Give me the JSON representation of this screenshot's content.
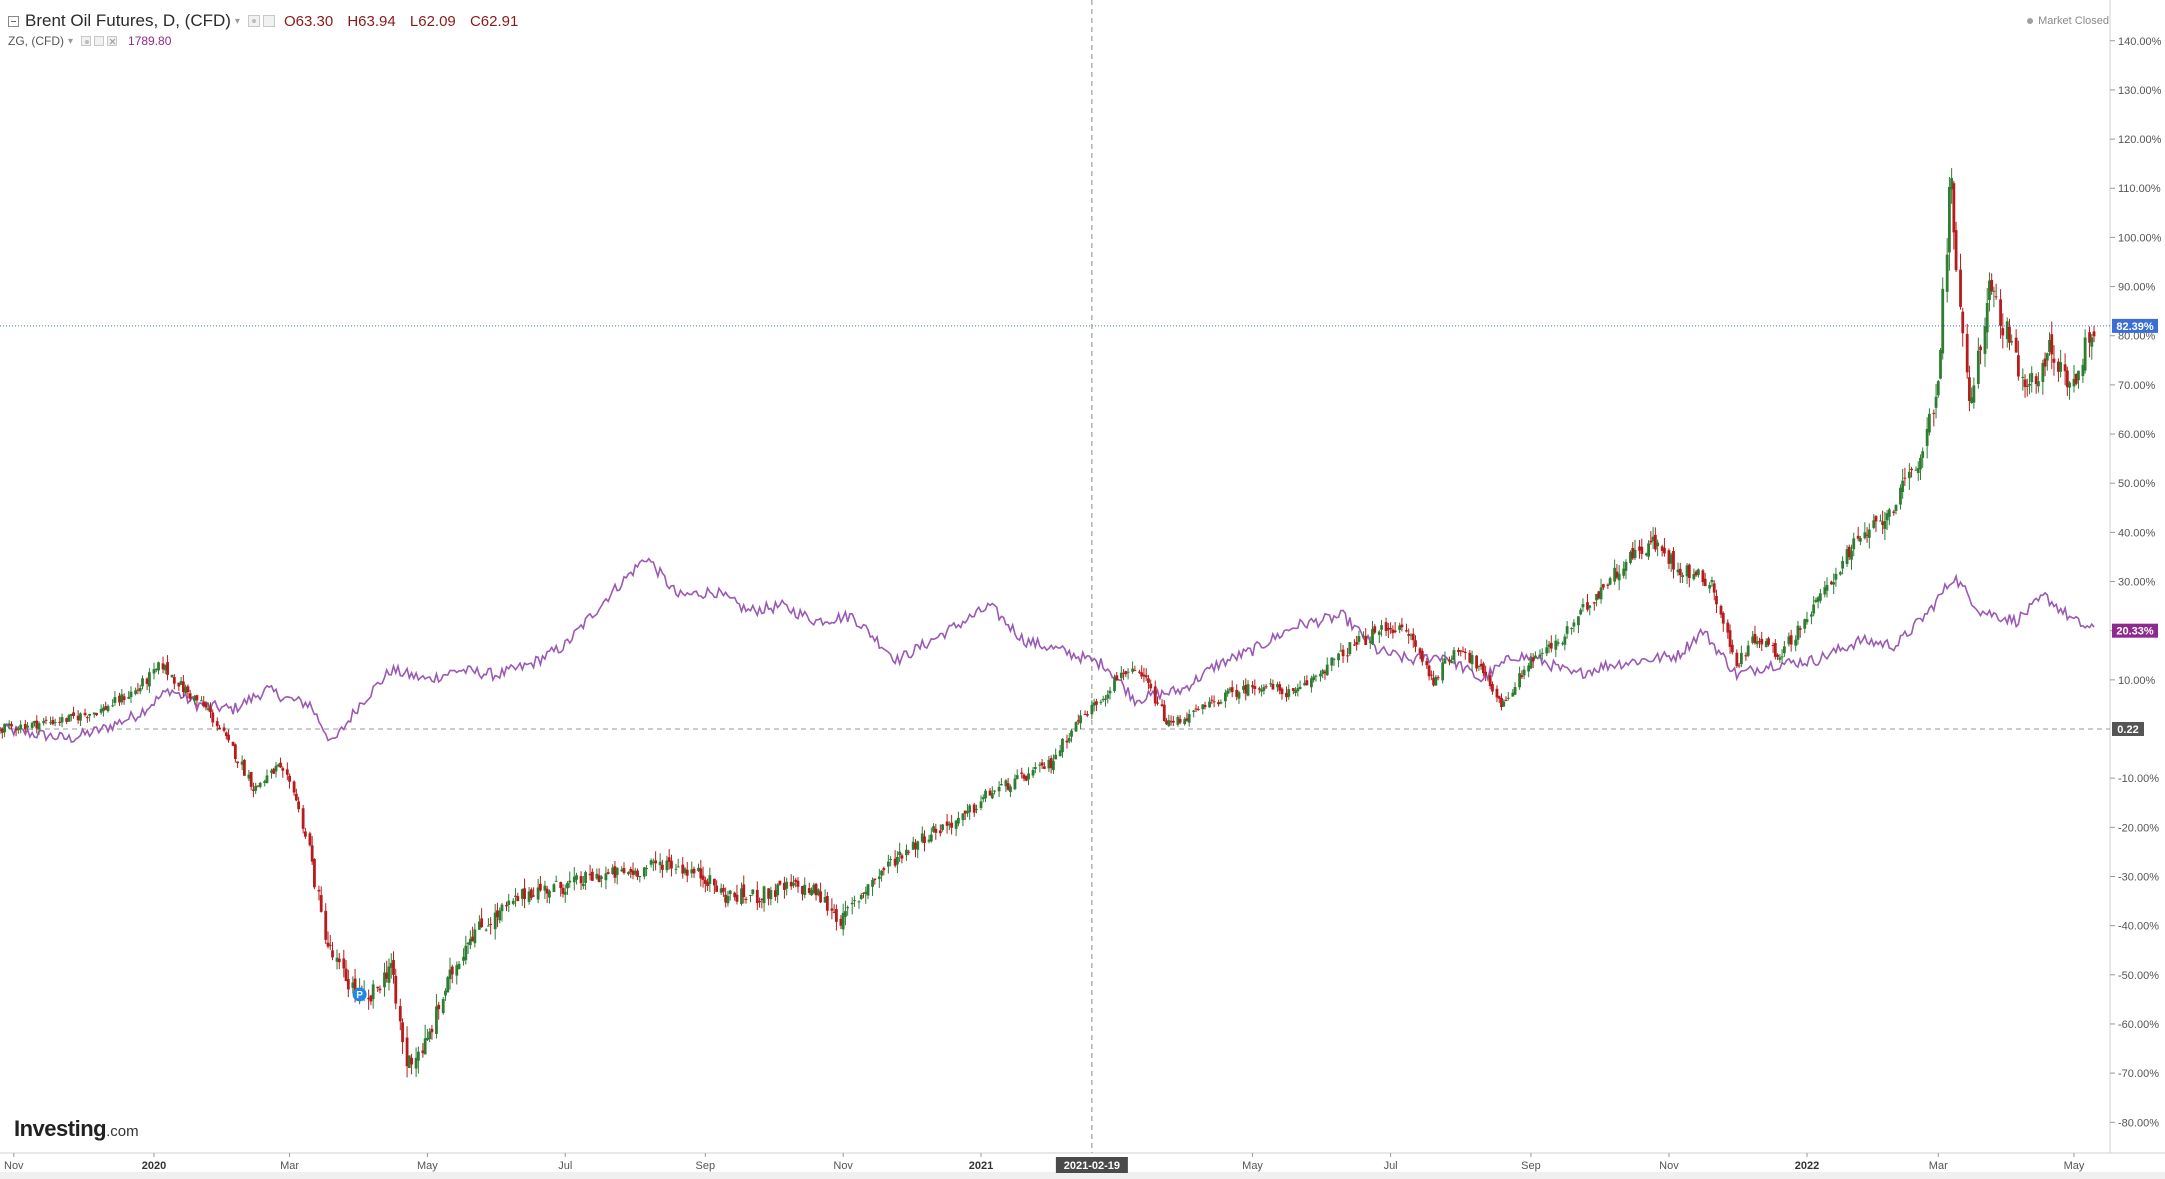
{
  "legend": {
    "main_symbol": "Brent Oil Futures, D, (CFD)",
    "open": "O63.30",
    "high": "H63.94",
    "low": "L62.09",
    "close": "C62.91",
    "compare_symbol": "ZG, (CFD)",
    "compare_value": "1789.80"
  },
  "status": {
    "market": "Market Closed"
  },
  "watermark": {
    "brand": "Investing",
    "suffix": ".com"
  },
  "colors": {
    "up_candle": "#2e7d32",
    "down_candle": "#b71c1c",
    "compare_line": "#9b59b6",
    "last_price_badge": "#3b6fd6",
    "compare_badge": "#8e2a8e",
    "zero_badge": "#555555"
  },
  "markers": {
    "event_label": "P"
  },
  "chart_data": {
    "type": "line",
    "title": "",
    "scale": "percent",
    "ylim": [
      -85,
      143
    ],
    "x_ticks": [
      {
        "label": "Nov",
        "date": "2019-11-01",
        "bold": false
      },
      {
        "label": "2020",
        "date": "2020-01-01",
        "bold": true
      },
      {
        "label": "Mar",
        "date": "2020-03-01",
        "bold": false
      },
      {
        "label": "May",
        "date": "2020-05-01",
        "bold": false
      },
      {
        "label": "Jul",
        "date": "2020-07-01",
        "bold": false
      },
      {
        "label": "Sep",
        "date": "2020-09-01",
        "bold": false
      },
      {
        "label": "Nov",
        "date": "2020-11-01",
        "bold": false
      },
      {
        "label": "2021",
        "date": "2021-01-01",
        "bold": true
      },
      {
        "label": "May",
        "date": "2021-05-01",
        "bold": false
      },
      {
        "label": "Jul",
        "date": "2021-07-01",
        "bold": false
      },
      {
        "label": "Sep",
        "date": "2021-09-01",
        "bold": false
      },
      {
        "label": "Nov",
        "date": "2021-11-01",
        "bold": false
      },
      {
        "label": "2022",
        "date": "2022-01-01",
        "bold": true
      },
      {
        "label": "Mar",
        "date": "2022-03-01",
        "bold": false
      },
      {
        "label": "May",
        "date": "2022-05-01",
        "bold": false
      }
    ],
    "y_ticks": [
      140,
      130,
      120,
      110,
      100,
      90,
      80,
      70,
      60,
      50,
      40,
      30,
      20,
      10,
      -10,
      -20,
      -30,
      -40,
      -50,
      -60,
      -70,
      -80
    ],
    "y_tick_suffix": ".00%",
    "crosshair": {
      "date_label": "2021-02-19"
    },
    "last_values": {
      "main": "82.39%",
      "compare": "20.33%",
      "zero": "0.22"
    },
    "event_marker_date": "2020-04-01",
    "series": [
      {
        "name": "Brent Oil Futures, D, (CFD)",
        "kind": "candlestick",
        "points": [
          [
            "2019-10-26",
            0
          ],
          [
            "2019-11-10",
            1
          ],
          [
            "2019-11-25",
            2
          ],
          [
            "2019-12-10",
            4
          ],
          [
            "2019-12-25",
            8
          ],
          [
            "2020-01-05",
            13
          ],
          [
            "2020-01-15",
            8
          ],
          [
            "2020-01-25",
            4
          ],
          [
            "2020-02-05",
            -4
          ],
          [
            "2020-02-15",
            -12
          ],
          [
            "2020-02-25",
            -8
          ],
          [
            "2020-03-03",
            -12
          ],
          [
            "2020-03-10",
            -24
          ],
          [
            "2020-03-18",
            -44
          ],
          [
            "2020-03-25",
            -50
          ],
          [
            "2020-04-05",
            -56
          ],
          [
            "2020-04-15",
            -48
          ],
          [
            "2020-04-22",
            -68
          ],
          [
            "2020-05-01",
            -64
          ],
          [
            "2020-05-10",
            -52
          ],
          [
            "2020-05-20",
            -42
          ],
          [
            "2020-06-01",
            -38
          ],
          [
            "2020-06-15",
            -33
          ],
          [
            "2020-07-01",
            -32
          ],
          [
            "2020-07-15",
            -30
          ],
          [
            "2020-08-01",
            -29
          ],
          [
            "2020-08-15",
            -27
          ],
          [
            "2020-09-01",
            -30
          ],
          [
            "2020-09-10",
            -34
          ],
          [
            "2020-09-25",
            -34
          ],
          [
            "2020-10-10",
            -32
          ],
          [
            "2020-10-20",
            -33
          ],
          [
            "2020-11-01",
            -39
          ],
          [
            "2020-11-10",
            -33
          ],
          [
            "2020-11-25",
            -26
          ],
          [
            "2020-12-10",
            -21
          ],
          [
            "2020-12-25",
            -18
          ],
          [
            "2021-01-05",
            -13
          ],
          [
            "2021-01-20",
            -10
          ],
          [
            "2021-02-01",
            -7
          ],
          [
            "2021-02-12",
            1
          ],
          [
            "2021-02-25",
            7
          ],
          [
            "2021-03-05",
            12
          ],
          [
            "2021-03-15",
            10
          ],
          [
            "2021-03-25",
            1
          ],
          [
            "2021-04-05",
            3
          ],
          [
            "2021-04-20",
            7
          ],
          [
            "2021-05-05",
            9
          ],
          [
            "2021-05-20",
            7
          ],
          [
            "2021-06-01",
            12
          ],
          [
            "2021-06-15",
            17
          ],
          [
            "2021-07-01",
            21
          ],
          [
            "2021-07-10",
            19
          ],
          [
            "2021-07-20",
            10
          ],
          [
            "2021-08-01",
            17
          ],
          [
            "2021-08-10",
            12
          ],
          [
            "2021-08-20",
            5
          ],
          [
            "2021-09-01",
            14
          ],
          [
            "2021-09-15",
            18
          ],
          [
            "2021-10-01",
            28
          ],
          [
            "2021-10-15",
            35
          ],
          [
            "2021-10-25",
            38
          ],
          [
            "2021-11-05",
            33
          ],
          [
            "2021-11-20",
            30
          ],
          [
            "2021-12-01",
            13
          ],
          [
            "2021-12-10",
            19
          ],
          [
            "2021-12-20",
            15
          ],
          [
            "2022-01-05",
            25
          ],
          [
            "2022-01-20",
            36
          ],
          [
            "2022-02-05",
            43
          ],
          [
            "2022-02-20",
            53
          ],
          [
            "2022-03-01",
            70
          ],
          [
            "2022-03-07",
            110
          ],
          [
            "2022-03-15",
            65
          ],
          [
            "2022-03-25",
            90
          ],
          [
            "2022-04-10",
            68
          ],
          [
            "2022-04-20",
            77
          ],
          [
            "2022-05-01",
            70
          ],
          [
            "2022-05-10",
            82
          ]
        ]
      },
      {
        "name": "ZG, (CFD)",
        "kind": "line",
        "points": [
          [
            "2019-10-26",
            0
          ],
          [
            "2019-11-10",
            -1
          ],
          [
            "2019-11-25",
            -2
          ],
          [
            "2019-12-10",
            0
          ],
          [
            "2019-12-25",
            3
          ],
          [
            "2020-01-08",
            8
          ],
          [
            "2020-01-20",
            5
          ],
          [
            "2020-02-05",
            4
          ],
          [
            "2020-02-20",
            8
          ],
          [
            "2020-03-01",
            6
          ],
          [
            "2020-03-10",
            5
          ],
          [
            "2020-03-20",
            -3
          ],
          [
            "2020-04-01",
            5
          ],
          [
            "2020-04-15",
            12
          ],
          [
            "2020-05-01",
            10
          ],
          [
            "2020-05-15",
            12
          ],
          [
            "2020-06-01",
            11
          ],
          [
            "2020-06-15",
            13
          ],
          [
            "2020-07-01",
            17
          ],
          [
            "2020-07-20",
            27
          ],
          [
            "2020-08-06",
            35
          ],
          [
            "2020-08-20",
            27
          ],
          [
            "2020-09-05",
            28
          ],
          [
            "2020-09-20",
            24
          ],
          [
            "2020-10-05",
            25
          ],
          [
            "2020-10-20",
            22
          ],
          [
            "2020-11-05",
            23
          ],
          [
            "2020-11-25",
            14
          ],
          [
            "2020-12-10",
            18
          ],
          [
            "2021-01-05",
            25
          ],
          [
            "2021-01-20",
            18
          ],
          [
            "2021-02-05",
            16
          ],
          [
            "2021-02-25",
            13
          ],
          [
            "2021-03-10",
            6
          ],
          [
            "2021-03-31",
            8
          ],
          [
            "2021-04-15",
            13
          ],
          [
            "2021-05-01",
            16
          ],
          [
            "2021-05-20",
            21
          ],
          [
            "2021-06-10",
            23
          ],
          [
            "2021-06-25",
            16
          ],
          [
            "2021-07-10",
            14
          ],
          [
            "2021-07-25",
            15
          ],
          [
            "2021-08-10",
            10
          ],
          [
            "2021-08-25",
            15
          ],
          [
            "2021-09-05",
            14
          ],
          [
            "2021-09-20",
            11
          ],
          [
            "2021-10-05",
            13
          ],
          [
            "2021-10-20",
            14
          ],
          [
            "2021-11-05",
            15
          ],
          [
            "2021-11-16",
            20
          ],
          [
            "2021-12-01",
            11
          ],
          [
            "2021-12-15",
            13
          ],
          [
            "2022-01-05",
            14
          ],
          [
            "2022-01-25",
            18
          ],
          [
            "2022-02-10",
            17
          ],
          [
            "2022-02-25",
            24
          ],
          [
            "2022-03-08",
            31
          ],
          [
            "2022-03-20",
            24
          ],
          [
            "2022-04-05",
            22
          ],
          [
            "2022-04-18",
            27
          ],
          [
            "2022-05-01",
            22
          ],
          [
            "2022-05-10",
            20
          ]
        ]
      }
    ]
  }
}
